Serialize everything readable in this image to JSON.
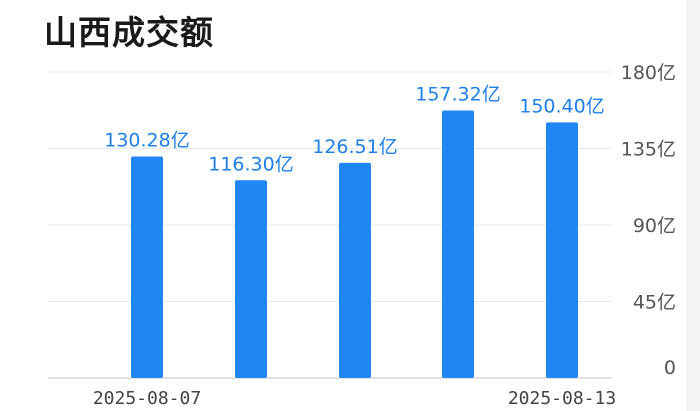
{
  "header": {
    "title": "山西成交额"
  },
  "colors": {
    "bar": "#1f86f4",
    "label": "#1f7fe8"
  },
  "chart_data": {
    "type": "bar",
    "title": "山西成交额",
    "categories": [
      "2025-08-07",
      "",
      "",
      "",
      "2025-08-13"
    ],
    "values": [
      130.28,
      116.3,
      126.51,
      157.32,
      150.4
    ],
    "data_labels": [
      "130.28亿",
      "116.30亿",
      "126.51亿",
      "157.32亿",
      "150.40亿"
    ],
    "x_tick_labels": [
      "2025-08-07",
      "2025-08-13"
    ],
    "y_ticks": [
      0,
      45,
      90,
      135,
      180
    ],
    "y_tick_labels": [
      "0",
      "45亿",
      "90亿",
      "135亿",
      "180亿"
    ],
    "ylim": [
      0,
      180
    ],
    "y_axis_position": "right",
    "grid": true,
    "xlabel": "",
    "ylabel": ""
  }
}
